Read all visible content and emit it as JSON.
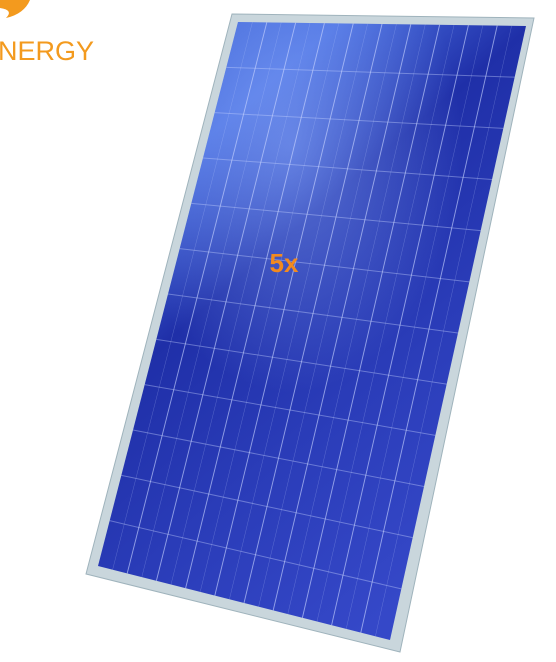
{
  "logo": {
    "text": "NERGY"
  },
  "label": "5x"
}
